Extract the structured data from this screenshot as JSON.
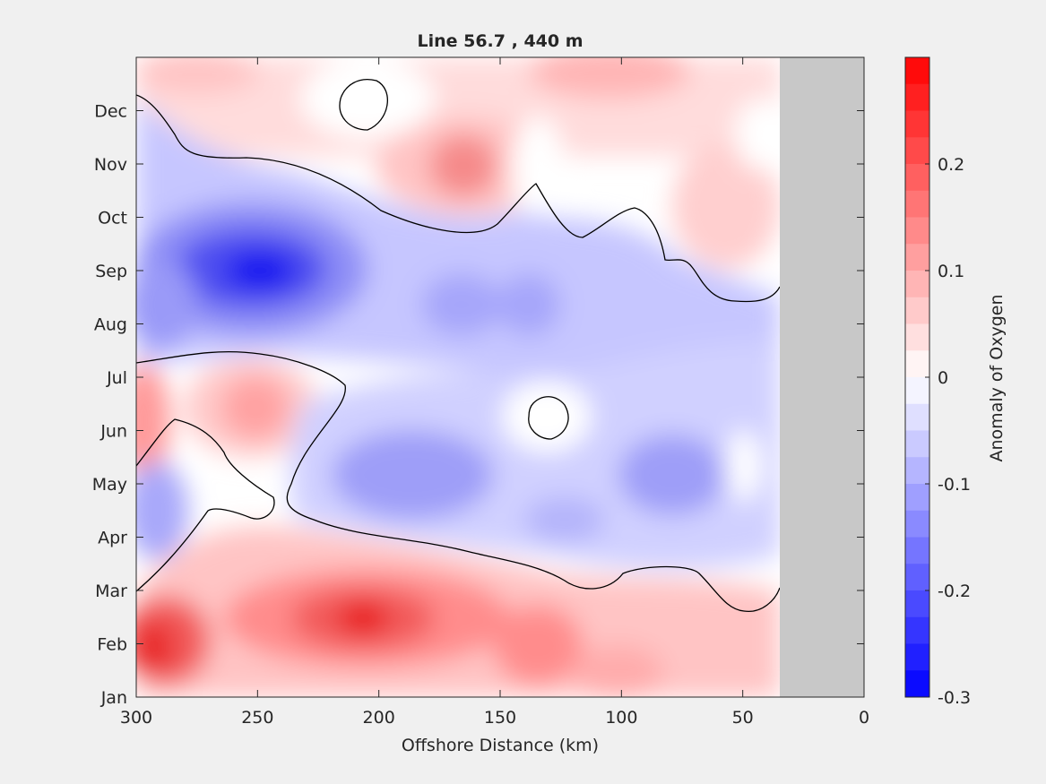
{
  "chart_data": {
    "type": "contour",
    "title": "Line 56.7 , 440 m",
    "xlabel": "Offshore Distance (km)",
    "ylabel": "",
    "xlim": [
      300,
      0
    ],
    "x_reversed": true,
    "x_ticks": [
      "300",
      "250",
      "200",
      "150",
      "100",
      "50",
      "0"
    ],
    "y_ticks": [
      "Jan",
      "Feb",
      "Mar",
      "Apr",
      "May",
      "Jun",
      "Jul",
      "Aug",
      "Sep",
      "Oct",
      "Nov",
      "Dec"
    ],
    "no_data_region_km": [
      35,
      0
    ],
    "colorbar": {
      "label": "Anomaly of Oxygen",
      "range": [
        -0.3,
        0.3
      ],
      "ticks": [
        "0.2",
        "0.1",
        "0",
        "-0.1",
        "-0.2",
        "-0.3"
      ],
      "levels": 24
    },
    "features": [
      {
        "name": "spring-positive-anomaly",
        "months": "Jan–Mar",
        "km_range": [
          300,
          35
        ],
        "peak": 0.27,
        "peak_km": 205,
        "peak_month": "Feb"
      },
      {
        "name": "summer-positive-anomaly",
        "months": "Jun–Jul",
        "km_range": [
          300,
          240
        ],
        "peak": 0.15,
        "peak_km": 250,
        "peak_month": "Jun"
      },
      {
        "name": "late-year-positive-anomaly",
        "months": "Oct–Dec",
        "km_range": [
          200,
          35
        ],
        "peak": 0.15,
        "peak_km": 165,
        "peak_month": "Nov"
      },
      {
        "name": "autumn-negative-anomaly",
        "months": "Aug–Oct",
        "km_range": [
          300,
          35
        ],
        "peak": -0.27,
        "peak_km": 250,
        "peak_month": "Sep"
      },
      {
        "name": "spring-negative-anomaly",
        "months": "Apr–Jul",
        "km_range": [
          210,
          35
        ],
        "peak": -0.15,
        "peak_km": 200,
        "peak_month": "May"
      }
    ]
  }
}
